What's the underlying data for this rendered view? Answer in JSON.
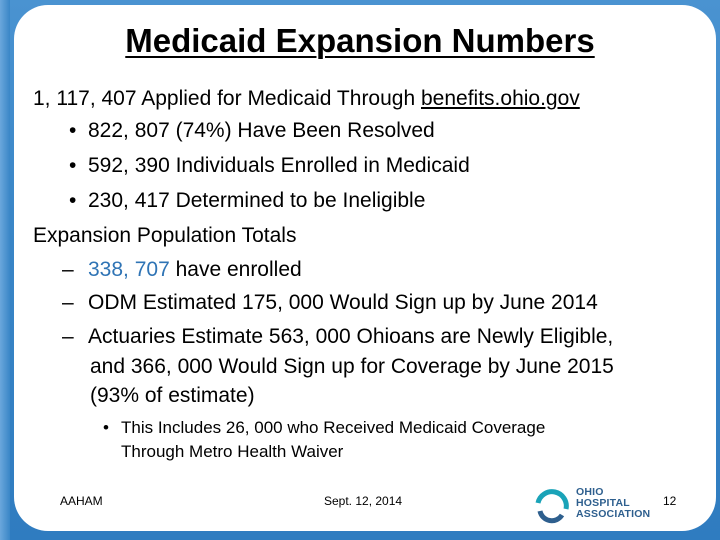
{
  "slide": {
    "title": "Medicaid Expansion Numbers",
    "applied_prefix": "1, 117, 407 Applied for Medicaid Through ",
    "applied_link": "benefits.ohio.gov",
    "resolved": "822, 807 (74%) Have Been Resolved",
    "enrolled": "592, 390 Individuals Enrolled in Medicaid",
    "ineligible": "230, 417 Determined to be Ineligible",
    "population_heading": "Expansion Population Totals",
    "have_enrolled_number": "338, 707",
    "have_enrolled_suffix": " have enrolled",
    "odm_estimate": "ODM Estimated 175, 000 Would Sign up by June 2014",
    "actuaries_line1": "Actuaries Estimate 563, 000 Ohioans are Newly Eligible,",
    "actuaries_line2": "and 366, 000 Would Sign up for Coverage by June 2015",
    "actuaries_line3": "(93% of estimate)",
    "metro_line1": "This Includes 26, 000 who Received Medicaid Coverage",
    "metro_line2": "Through Metro Health Waiver"
  },
  "footer": {
    "left": "AAHAM",
    "center": "Sept. 12, 2014",
    "page_number": "12",
    "logo_line1": "OHIO",
    "logo_line2": "HOSPITAL",
    "logo_line3": "ASSOCIATION"
  },
  "colors": {
    "background": "#3a86c7",
    "accent": "#2f74b5",
    "logo_teal": "#1aa3b8",
    "logo_blue": "#2e5f8e"
  }
}
